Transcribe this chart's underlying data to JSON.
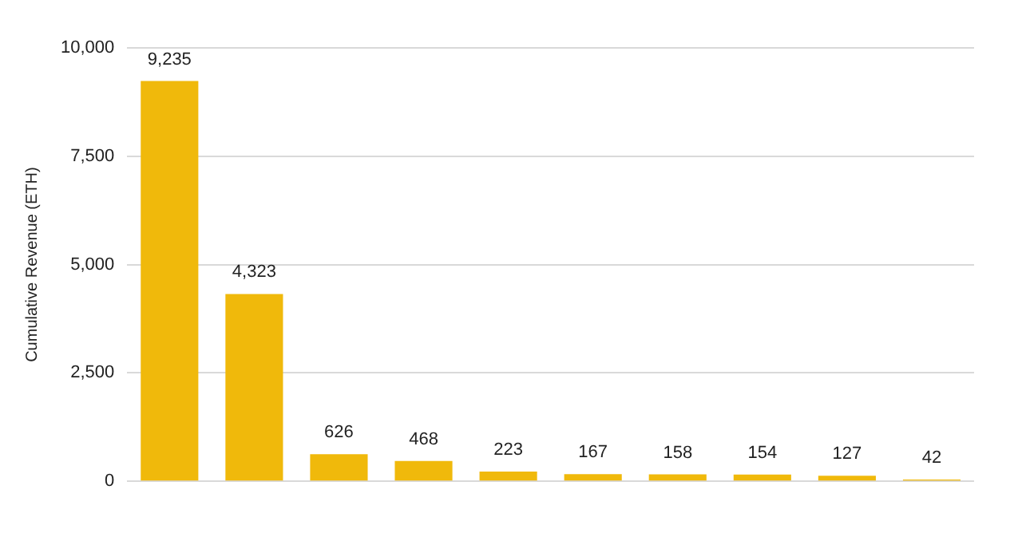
{
  "chart_data": {
    "type": "bar",
    "ylabel": "Cumulative Revenue (ETH)",
    "categories": [
      null,
      null,
      null,
      null,
      null,
      null,
      null,
      null,
      null,
      null
    ],
    "values": [
      9235,
      4323,
      626,
      468,
      223,
      167,
      158,
      154,
      127,
      42
    ],
    "value_labels": [
      "9,235",
      "4,323",
      "626",
      "468",
      "223",
      "167",
      "158",
      "154",
      "127",
      "42"
    ],
    "color": "#f0b90b",
    "ylim": [
      0,
      10000
    ],
    "yticks": [
      0,
      {
        "value": 2500,
        "label": "2,500"
      },
      {
        "value": 5000,
        "label": "5,000"
      },
      {
        "value": 7500,
        "label": "7,500"
      },
      {
        "value": 10000,
        "label": "10,000"
      }
    ],
    "grid": "y",
    "legend": false
  }
}
